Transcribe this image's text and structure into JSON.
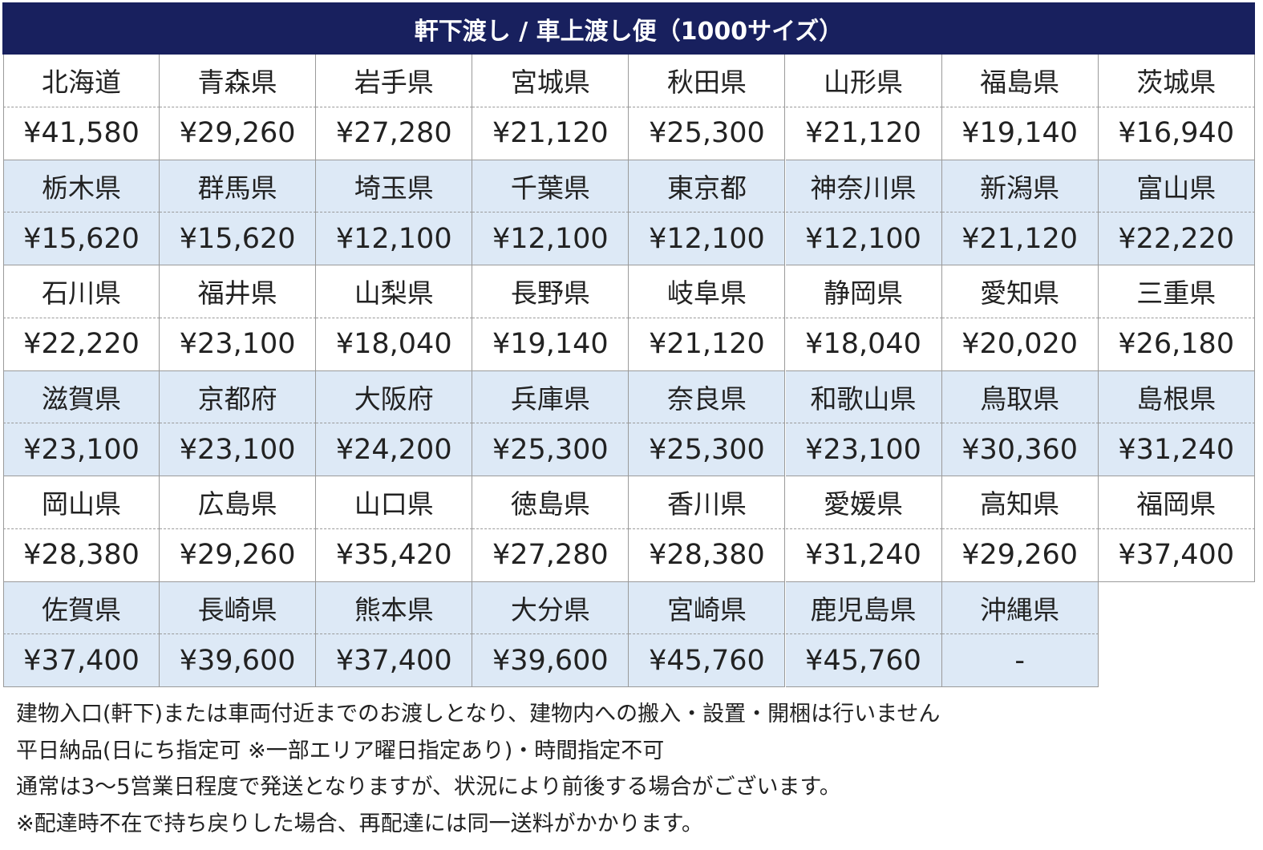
{
  "header": {
    "title": "軒下渡し / 車上渡し便（1000サイズ）"
  },
  "table": {
    "rows": [
      {
        "names": [
          "北海道",
          "青森県",
          "岩手県",
          "宮城県",
          "秋田県",
          "山形県",
          "福島県",
          "茨城県"
        ],
        "prices": [
          "¥41,580",
          "¥29,260",
          "¥27,280",
          "¥21,120",
          "¥25,300",
          "¥21,120",
          "¥19,140",
          "¥16,940"
        ]
      },
      {
        "names": [
          "栃木県",
          "群馬県",
          "埼玉県",
          "千葉県",
          "東京都",
          "神奈川県",
          "新潟県",
          "富山県"
        ],
        "prices": [
          "¥15,620",
          "¥15,620",
          "¥12,100",
          "¥12,100",
          "¥12,100",
          "¥12,100",
          "¥21,120",
          "¥22,220"
        ]
      },
      {
        "names": [
          "石川県",
          "福井県",
          "山梨県",
          "長野県",
          "岐阜県",
          "静岡県",
          "愛知県",
          "三重県"
        ],
        "prices": [
          "¥22,220",
          "¥23,100",
          "¥18,040",
          "¥19,140",
          "¥21,120",
          "¥18,040",
          "¥20,020",
          "¥26,180"
        ]
      },
      {
        "names": [
          "滋賀県",
          "京都府",
          "大阪府",
          "兵庫県",
          "奈良県",
          "和歌山県",
          "鳥取県",
          "島根県"
        ],
        "prices": [
          "¥23,100",
          "¥23,100",
          "¥24,200",
          "¥25,300",
          "¥25,300",
          "¥23,100",
          "¥30,360",
          "¥31,240"
        ]
      },
      {
        "names": [
          "岡山県",
          "広島県",
          "山口県",
          "徳島県",
          "香川県",
          "愛媛県",
          "高知県",
          "福岡県"
        ],
        "prices": [
          "¥28,380",
          "¥29,260",
          "¥35,420",
          "¥27,280",
          "¥28,380",
          "¥31,240",
          "¥29,260",
          "¥37,400"
        ]
      },
      {
        "names": [
          "佐賀県",
          "長崎県",
          "熊本県",
          "大分県",
          "宮崎県",
          "鹿児島県",
          "沖縄県"
        ],
        "prices": [
          "¥37,400",
          "¥39,600",
          "¥37,400",
          "¥39,600",
          "¥45,760",
          "¥45,760",
          "-"
        ]
      }
    ]
  },
  "notes": [
    "建物入口(軒下)または車両付近までのお渡しとなり、建物内への搬入・設置・開梱は行いません",
    "平日納品(日にち指定可 ※一部エリア曜日指定あり)・時間指定不可",
    "通常は3～5営業日程度で発送となりますが、状況により前後する場合がございます。",
    "※配達時不在で持ち戻りした場合、再配達には同一送料がかかります。"
  ]
}
